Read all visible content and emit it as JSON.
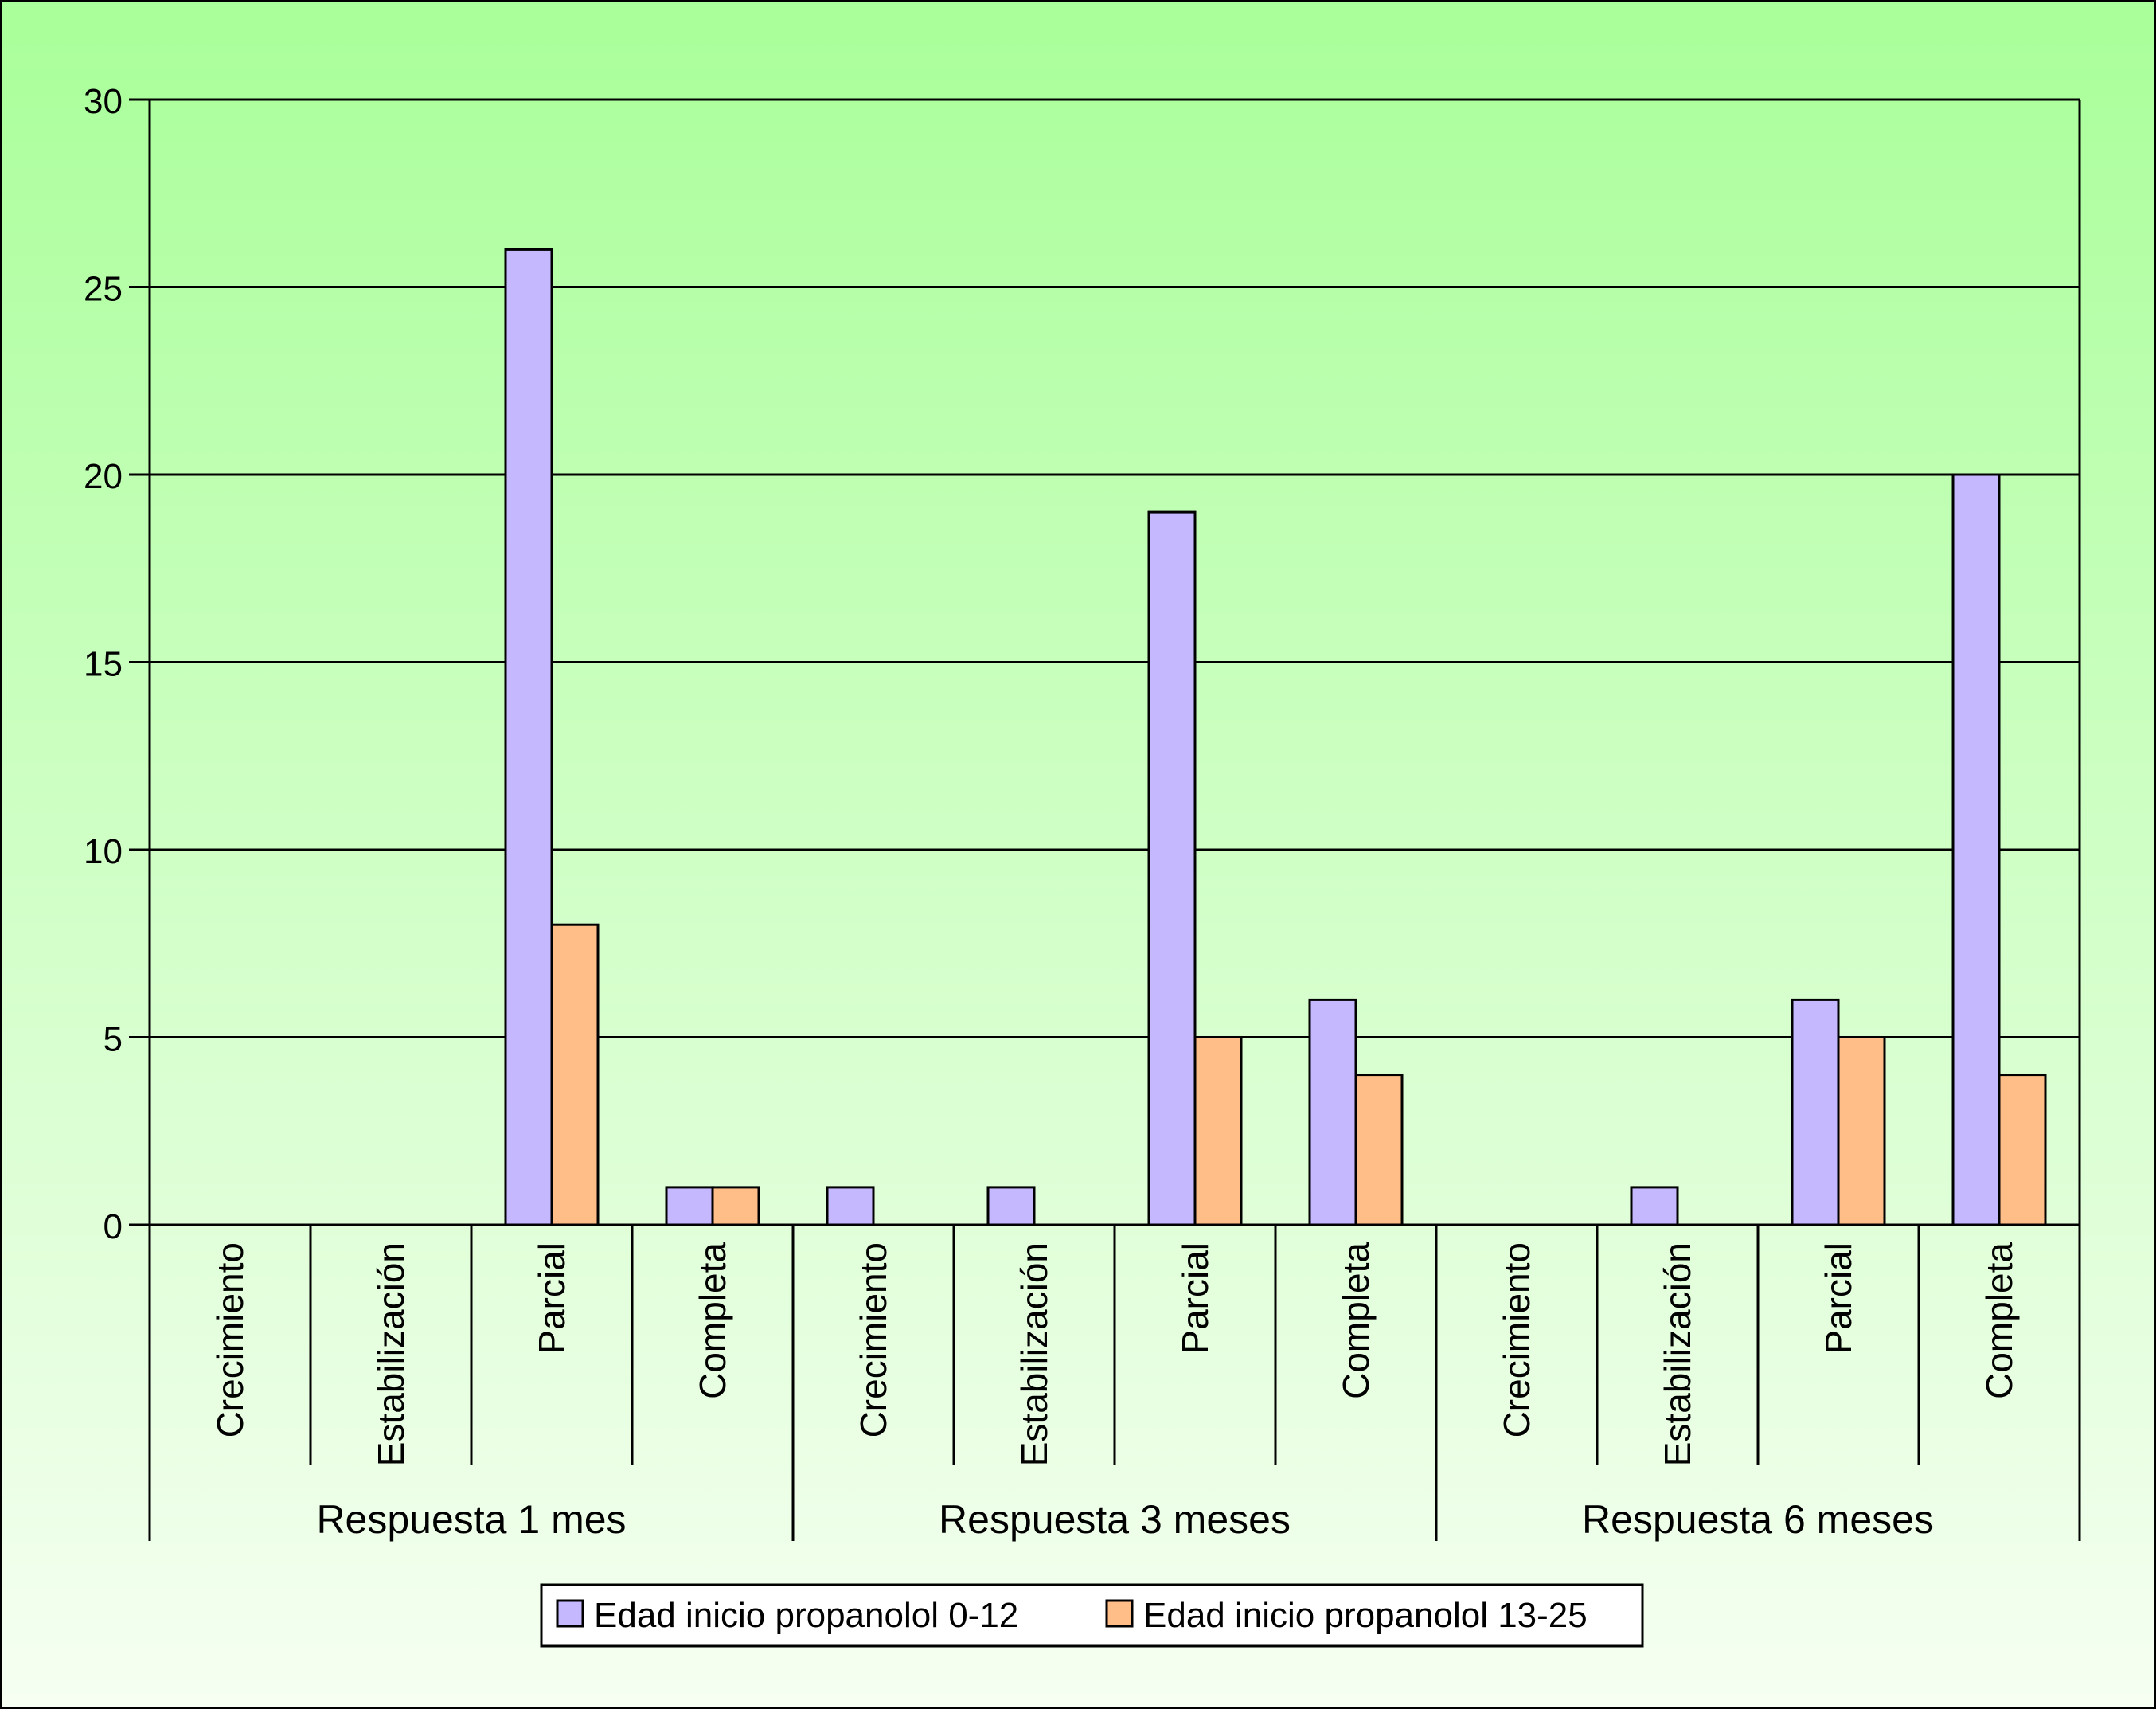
{
  "chart_data": {
    "type": "bar",
    "title": "",
    "xlabel": "",
    "ylabel": "",
    "ylim": [
      0,
      30
    ],
    "yticks": [
      0,
      5,
      10,
      15,
      20,
      25,
      30
    ],
    "grid": true,
    "legend_position": "bottom-center",
    "groups": [
      {
        "label": "Respuesta 1 mes",
        "categories": [
          "Crecimiento",
          "Estabilización",
          "Parcial",
          "Completa"
        ]
      },
      {
        "label": "Respuesta 3 meses",
        "categories": [
          "Crecimiento",
          "Estabilización",
          "Parcial",
          "Completa"
        ]
      },
      {
        "label": "Respuesta 6 meses",
        "categories": [
          "Crecimiento",
          "Estabilización",
          "Parcial",
          "Completa"
        ]
      }
    ],
    "series": [
      {
        "name": "Edad inicio propanolol 0-12",
        "color": "#c5b8ff",
        "values": [
          0,
          0,
          26,
          1,
          1,
          1,
          19,
          6,
          0,
          1,
          6,
          20
        ]
      },
      {
        "name": "Edad inicio propanolol 13-25",
        "color": "#ffbe87",
        "values": [
          0,
          0,
          8,
          1,
          0,
          0,
          5,
          4,
          0,
          0,
          5,
          4
        ]
      }
    ],
    "background_gradient": [
      "#a9ff99",
      "#f6fff2"
    ]
  }
}
